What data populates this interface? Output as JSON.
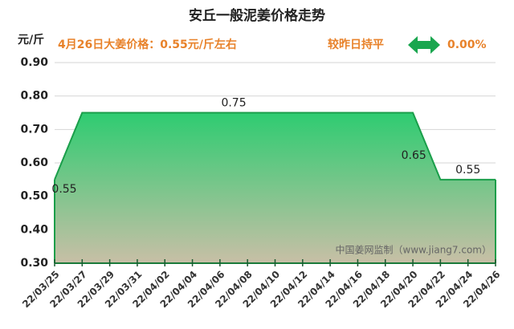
{
  "chart_data": {
    "type": "area",
    "title": "安丘一般泥姜价格走势",
    "y_label": "元/斤",
    "subtitle": "4月26日大姜价格：0.55元/斤左右",
    "change_label": "较昨日持平",
    "change_value": "0.00%",
    "watermark": "中国姜网监制（www.jiang7.com）",
    "categories": [
      "22/03/25",
      null,
      "22/03/27",
      null,
      "22/03/29",
      null,
      "22/03/31",
      null,
      "22/04/02",
      null,
      "22/04/04",
      null,
      "22/04/06",
      null,
      "22/04/08",
      null,
      "22/04/10",
      null,
      "22/04/12",
      null,
      "22/04/14",
      null,
      "22/04/16",
      null,
      "22/04/18",
      null,
      "22/04/20",
      null,
      "22/04/22",
      null,
      "22/04/24",
      null,
      "22/04/26"
    ],
    "values": [
      0.55,
      0.65,
      0.75,
      0.75,
      0.75,
      0.75,
      0.75,
      0.75,
      0.75,
      0.75,
      0.75,
      0.75,
      0.75,
      0.75,
      0.75,
      0.75,
      0.75,
      0.75,
      0.75,
      0.75,
      0.75,
      0.75,
      0.75,
      0.75,
      0.75,
      0.75,
      0.75,
      0.65,
      0.55,
      0.55,
      0.55,
      0.55,
      0.55
    ],
    "value_labels": [
      "0.55",
      null,
      null,
      null,
      null,
      null,
      null,
      null,
      null,
      null,
      null,
      null,
      null,
      "0.75",
      null,
      null,
      null,
      null,
      null,
      null,
      null,
      null,
      null,
      null,
      null,
      null,
      null,
      "0.65",
      null,
      null,
      "0.55",
      null,
      null
    ],
    "color": "#1a9e4a",
    "ylim": [
      0.3,
      0.9
    ],
    "yticks": [
      {
        "value": 0.3,
        "label": "0.30"
      },
      {
        "value": 0.4,
        "label": "0.40"
      },
      {
        "value": 0.5,
        "label": "0.50"
      },
      {
        "value": 0.6,
        "label": "0.60"
      },
      {
        "value": 0.7,
        "label": "0.70"
      },
      {
        "value": 0.8,
        "label": "0.80"
      },
      {
        "value": 0.9,
        "label": "0.90"
      }
    ],
    "grid": true
  }
}
